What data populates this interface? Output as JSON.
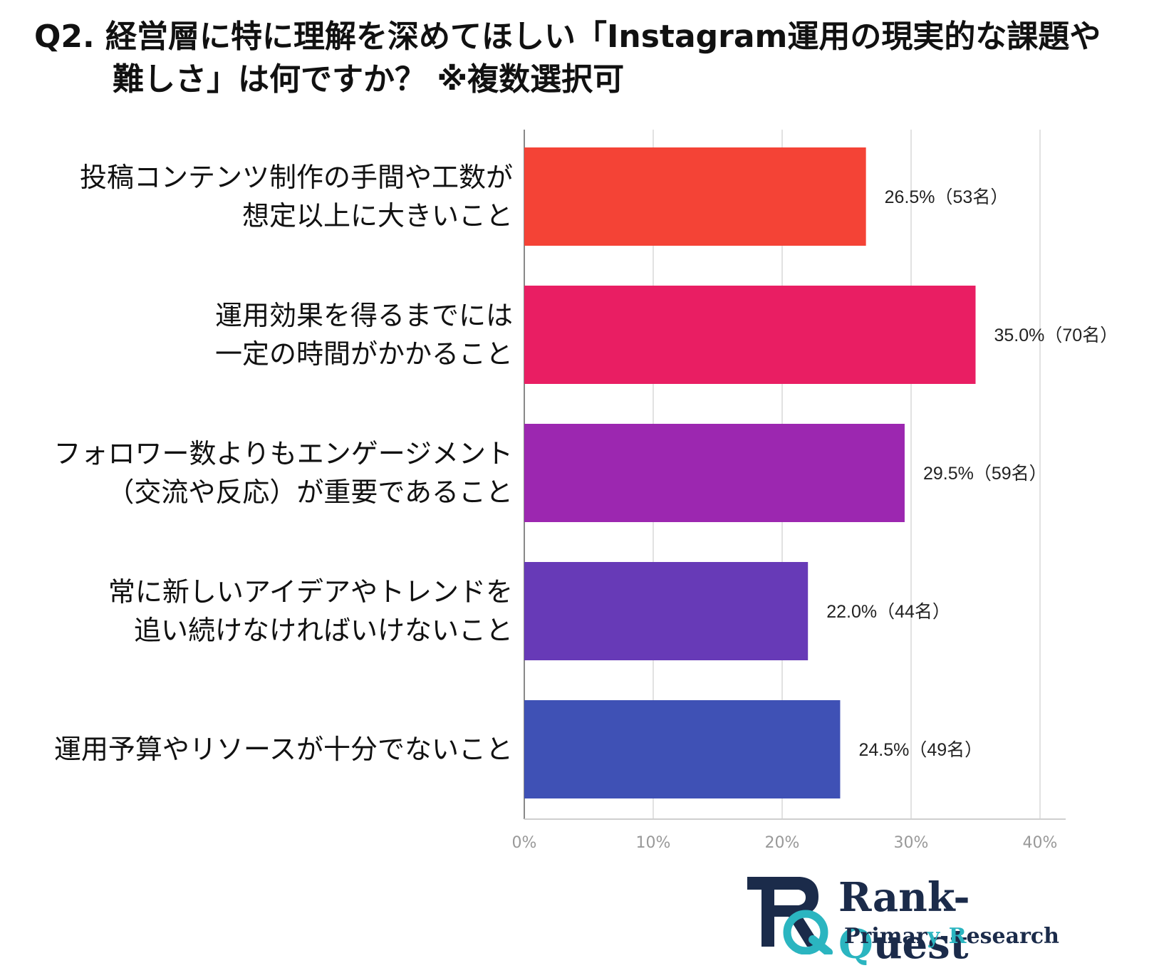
{
  "title": {
    "line1": "Q2. 経営層に特に理解を深めてほしい「Instagram運用の現実的な課題や",
    "line2": "難しさ」は何ですか？ ※複数選択可"
  },
  "chart_data": {
    "type": "bar",
    "orientation": "horizontal",
    "categories": [
      [
        "投稿コンテンツ制作の手間や工数が",
        "想定以上に大きいこと"
      ],
      [
        "運用効果を得るまでには",
        "一定の時間がかかること"
      ],
      [
        "フォロワー数よりもエンゲージメント",
        "（交流や反応）が重要であること"
      ],
      [
        "常に新しいアイデアやトレンドを",
        "追い続けなければいけないこと"
      ],
      [
        "運用予算やリソースが十分でないこと"
      ]
    ],
    "values": [
      26.5,
      35.0,
      29.5,
      22.0,
      24.5
    ],
    "data_labels": [
      "26.5%（53名）",
      "35.0%（70名）",
      "29.5%（59名）",
      "22.0%（44名）",
      "24.5%（49名）"
    ],
    "colors": [
      "#f44336",
      "#e91e63",
      "#9c27b0",
      "#673ab7",
      "#3f51b5"
    ],
    "x_ticks": [
      "0%",
      "10%",
      "20%",
      "30%",
      "40%"
    ],
    "xlim": [
      0,
      40
    ],
    "grid": true,
    "xlabel": "",
    "ylabel": ""
  },
  "logo": {
    "brand_prefix": "Rank-",
    "brand_q": "Q",
    "brand_suffix": "uest",
    "sub_prefix": "Primar",
    "sub_y": "y",
    "sub_mid": "-",
    "sub_r": "R",
    "sub_suffix": "esearch"
  }
}
